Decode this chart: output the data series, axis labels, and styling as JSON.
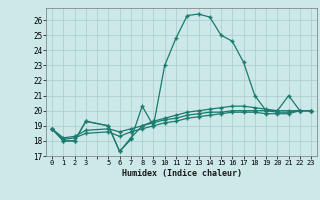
{
  "xlabel": "Humidex (Indice chaleur)",
  "bg_color": "#cce8e8",
  "grid_color": "#b0d8d8",
  "line_color": "#1a7a6e",
  "xlim": [
    -0.5,
    23.5
  ],
  "ylim": [
    17,
    26.8
  ],
  "yticks": [
    17,
    18,
    19,
    20,
    21,
    22,
    23,
    24,
    25,
    26
  ],
  "xtick_labels": [
    "0",
    "1",
    "2",
    "3",
    "",
    "5",
    "6",
    "7",
    "8",
    "9",
    "10",
    "11",
    "12",
    "13",
    "14",
    "15",
    "16",
    "17",
    "18",
    "19",
    "20",
    "21",
    "22",
    "23"
  ],
  "series": [
    [
      18.8,
      18.0,
      18.0,
      19.3,
      null,
      19.0,
      17.3,
      18.1,
      20.3,
      19.0,
      23.0,
      24.8,
      26.3,
      26.4,
      26.2,
      25.0,
      24.6,
      23.2,
      21.0,
      20.0,
      20.0,
      21.0,
      20.0,
      20.0
    ],
    [
      18.8,
      18.0,
      18.0,
      19.3,
      null,
      19.0,
      17.3,
      18.2,
      19.0,
      19.3,
      19.5,
      19.7,
      19.9,
      20.0,
      20.1,
      20.2,
      20.3,
      20.3,
      20.2,
      20.1,
      20.0,
      20.0,
      20.0,
      20.0
    ],
    [
      18.8,
      18.2,
      18.3,
      18.7,
      null,
      18.8,
      18.6,
      18.8,
      19.0,
      19.2,
      19.4,
      19.5,
      19.7,
      19.8,
      19.9,
      19.9,
      20.0,
      20.0,
      20.0,
      20.0,
      19.9,
      19.9,
      20.0,
      20.0
    ],
    [
      18.8,
      18.1,
      18.2,
      18.5,
      null,
      18.6,
      18.3,
      18.6,
      18.8,
      19.0,
      19.2,
      19.3,
      19.5,
      19.6,
      19.7,
      19.8,
      19.9,
      19.9,
      19.9,
      19.8,
      19.8,
      19.8,
      20.0,
      20.0
    ]
  ]
}
